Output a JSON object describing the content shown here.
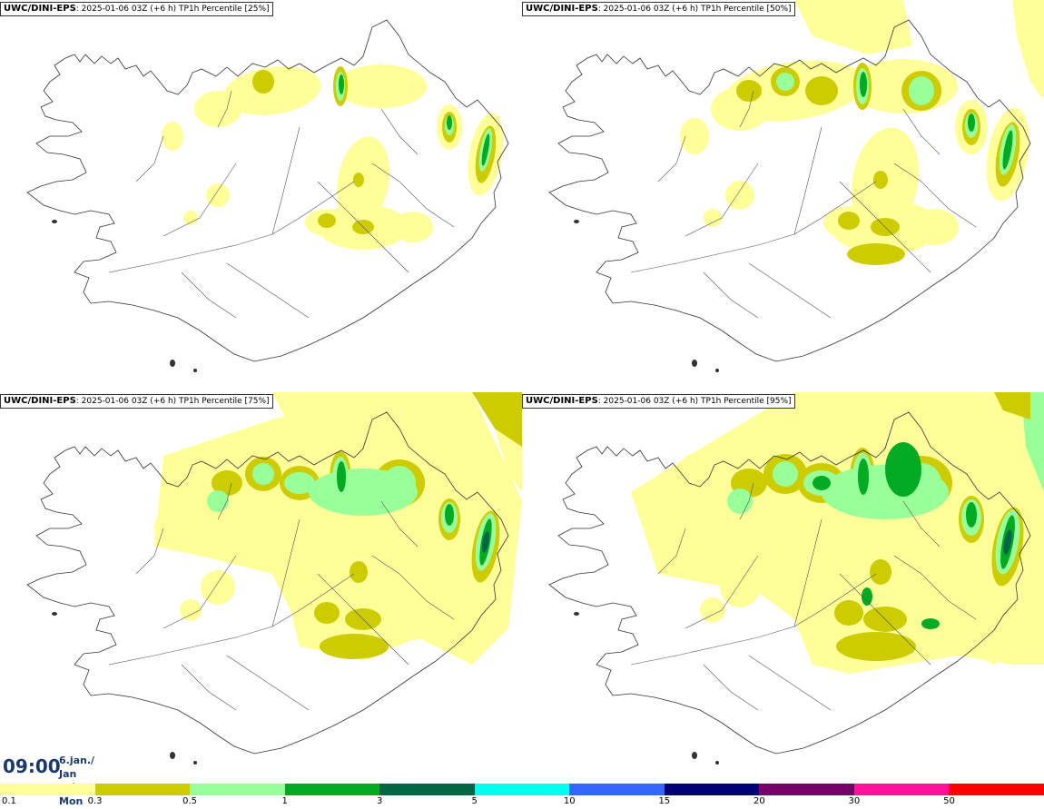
{
  "panels": [
    {
      "source": "UWC/DINI-EPS",
      "run": ": 2025-01-06 03Z (+6 h)",
      "field": " TP1h Percentile [25%]",
      "level": 1
    },
    {
      "source": "UWC/DINI-EPS",
      "run": ": 2025-01-06 03Z (+6 h)",
      "field": " TP1h Percentile [50%]",
      "level": 2
    },
    {
      "source": "UWC/DINI-EPS",
      "run": ": 2025-01-06 03Z (+6 h)",
      "field": " TP1h Percentile [75%]",
      "level": 3
    },
    {
      "source": "UWC/DINI-EPS",
      "run": ": 2025-01-06 03Z (+6 h)",
      "field": " TP1h Percentile [95%]",
      "level": 4
    }
  ],
  "time": {
    "value": "09:00",
    "date_line1": "6.jan./ Jan",
    "date_line2": "Mán./ Mon"
  },
  "legend": {
    "colors": [
      "#ffff99",
      "#cccc00",
      "#99ff99",
      "#00aa22",
      "#006644",
      "#00ffee",
      "#3366ff",
      "#000077",
      "#770066",
      "#ff1199",
      "#ff0000"
    ],
    "ticks": [
      "0.1",
      "0.3",
      "0.5",
      "1",
      "3",
      "5",
      "10",
      "15",
      "20",
      "30",
      "50"
    ]
  }
}
